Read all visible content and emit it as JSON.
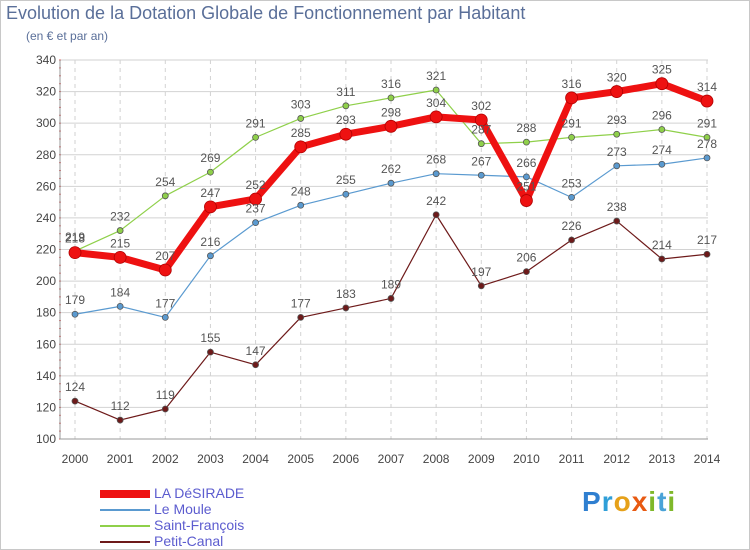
{
  "title": "Evolution de la Dotation Globale de Fonctionnement par Habitant",
  "subtitle": "(en € et par an)",
  "logo": {
    "text": "Proxiti",
    "letters": [
      {
        "char": "P",
        "color": "#2f7fd0"
      },
      {
        "char": "r",
        "color": "#2f9fd8"
      },
      {
        "char": "o",
        "color": "#e6a11a"
      },
      {
        "char": "x",
        "color": "#e85a12"
      },
      {
        "char": "i",
        "color": "#7fb82a"
      },
      {
        "char": "t",
        "color": "#4aa3d8"
      },
      {
        "char": "i",
        "color": "#7fb82a"
      }
    ]
  },
  "chart_data": {
    "type": "line",
    "title": "Evolution de la Dotation Globale de Fonctionnement par Habitant",
    "ylabel": "(en € et par an)",
    "xlabel": "",
    "x": [
      "2000",
      "2001",
      "2002",
      "2003",
      "2004",
      "2005",
      "2006",
      "2007",
      "2008",
      "2009",
      "2010",
      "2011",
      "2012",
      "2013",
      "2014"
    ],
    "ylim": [
      100,
      340
    ],
    "yticks": [
      100,
      120,
      140,
      160,
      180,
      200,
      220,
      240,
      260,
      280,
      300,
      320,
      340
    ],
    "grid": true,
    "legend": "bottom-left",
    "series": [
      {
        "name": "LA DéSIRADE",
        "color": "#ee1111",
        "width": 7,
        "marker": 6,
        "values": [
          218,
          215,
          207,
          247,
          252,
          285,
          293,
          298,
          304,
          302,
          251,
          316,
          320,
          325,
          314
        ],
        "labels": [
          "218",
          "215",
          "207",
          "247",
          "252",
          "285",
          "293",
          "298",
          "304",
          "302",
          "251",
          "316",
          "320",
          "325",
          "314"
        ]
      },
      {
        "name": "Le Moule",
        "color": "#5a9ad0",
        "width": 1.2,
        "marker": 3,
        "values": [
          179,
          184,
          177,
          216,
          237,
          248,
          255,
          262,
          268,
          267,
          266,
          253,
          273,
          274,
          278
        ],
        "labels": [
          "179",
          "184",
          "177",
          "216",
          "237",
          "248",
          "255",
          "262",
          "268",
          "267",
          "266",
          "253",
          "273",
          "274",
          "278"
        ]
      },
      {
        "name": "Saint-François",
        "color": "#8fd04a",
        "width": 1.2,
        "marker": 3,
        "values": [
          219,
          232,
          254,
          269,
          291,
          303,
          311,
          316,
          321,
          287,
          288,
          291,
          293,
          296,
          291
        ],
        "labels": [
          "219",
          "232",
          "254",
          "269",
          "291",
          "303",
          "311",
          "316",
          "321",
          "287",
          "288",
          "291",
          "293",
          "296",
          "291"
        ]
      },
      {
        "name": "Petit-Canal",
        "color": "#6e1a1a",
        "width": 1.2,
        "marker": 3,
        "values": [
          124,
          112,
          119,
          155,
          147,
          177,
          183,
          189,
          242,
          197,
          206,
          226,
          238,
          214,
          217
        ],
        "labels": [
          "124",
          "112",
          "119",
          "155",
          "147",
          "177",
          "183",
          "189",
          "242",
          "197",
          "206",
          "226",
          "238",
          "214",
          "217"
        ]
      }
    ]
  }
}
